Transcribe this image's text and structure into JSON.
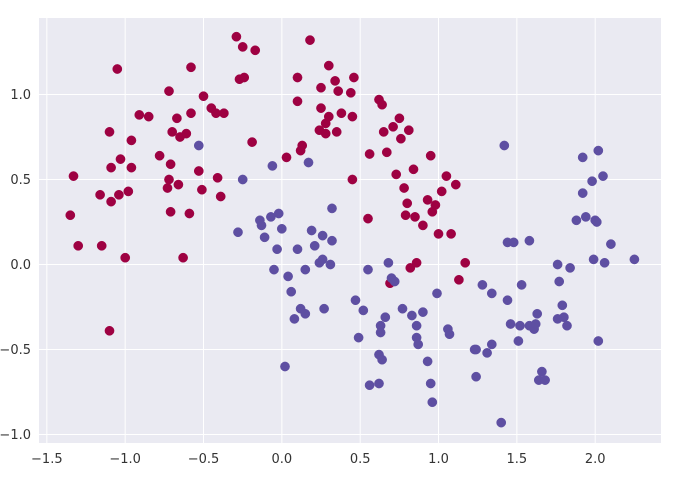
{
  "chart_data": {
    "type": "scatter",
    "title": "",
    "xlabel": "",
    "ylabel": "",
    "xlim": [
      -1.55,
      2.42
    ],
    "ylim": [
      -1.05,
      1.45
    ],
    "grid": true,
    "legend": false,
    "background": "#eaeaf2",
    "grid_color": "#ffffff",
    "xticks": [
      -1.5,
      -1.0,
      -0.5,
      0.0,
      0.5,
      1.0,
      1.5,
      2.0
    ],
    "xtick_labels": [
      "−1.5",
      "−1.0",
      "−0.5",
      "0.0",
      "0.5",
      "1.0",
      "1.5",
      "2.0"
    ],
    "yticks": [
      -1.0,
      -0.5,
      0.0,
      0.5,
      1.0
    ],
    "ytick_labels": [
      "−1.0",
      "−0.5",
      "0.0",
      "0.5",
      "1.0"
    ],
    "series": [
      {
        "color": "#9e0142",
        "points": [
          [
            -1.35,
            0.29
          ],
          [
            -1.33,
            0.52
          ],
          [
            -1.3,
            0.11
          ],
          [
            -1.16,
            0.41
          ],
          [
            -1.15,
            0.11
          ],
          [
            -1.1,
            -0.39
          ],
          [
            -1.1,
            0.78
          ],
          [
            -1.09,
            0.37
          ],
          [
            -1.09,
            0.57
          ],
          [
            -1.05,
            1.15
          ],
          [
            -1.04,
            0.41
          ],
          [
            -1.03,
            0.62
          ],
          [
            -1.0,
            0.04
          ],
          [
            -0.98,
            0.43
          ],
          [
            -0.96,
            0.57
          ],
          [
            -0.96,
            0.73
          ],
          [
            -0.91,
            0.88
          ],
          [
            -0.85,
            0.87
          ],
          [
            -0.78,
            0.64
          ],
          [
            -0.73,
            0.45
          ],
          [
            -0.72,
            0.5
          ],
          [
            -0.71,
            0.31
          ],
          [
            -0.71,
            0.59
          ],
          [
            -0.72,
            1.02
          ],
          [
            -0.7,
            0.78
          ],
          [
            -0.67,
            0.86
          ],
          [
            -0.66,
            0.47
          ],
          [
            -0.65,
            0.75
          ],
          [
            -0.63,
            0.04
          ],
          [
            -0.61,
            0.77
          ],
          [
            -0.59,
            0.3
          ],
          [
            -0.58,
            0.89
          ],
          [
            -0.58,
            1.16
          ],
          [
            -0.53,
            0.55
          ],
          [
            -0.51,
            0.44
          ],
          [
            -0.5,
            0.99
          ],
          [
            -0.45,
            0.92
          ],
          [
            -0.42,
            0.89
          ],
          [
            -0.41,
            0.51
          ],
          [
            -0.39,
            0.4
          ],
          [
            -0.37,
            0.89
          ],
          [
            -0.29,
            1.34
          ],
          [
            -0.27,
            1.09
          ],
          [
            -0.25,
            1.28
          ],
          [
            -0.24,
            1.1
          ],
          [
            -0.19,
            0.72
          ],
          [
            -0.17,
            1.26
          ],
          [
            0.03,
            0.63
          ],
          [
            0.1,
            1.1
          ],
          [
            0.1,
            0.96
          ],
          [
            0.12,
            0.67
          ],
          [
            0.13,
            0.7
          ],
          [
            0.18,
            1.32
          ],
          [
            0.24,
            0.79
          ],
          [
            0.25,
            1.04
          ],
          [
            0.25,
            0.92
          ],
          [
            0.28,
            0.83
          ],
          [
            0.28,
            0.77
          ],
          [
            0.3,
            0.87
          ],
          [
            0.3,
            1.17
          ],
          [
            0.34,
            1.08
          ],
          [
            0.35,
            0.78
          ],
          [
            0.36,
            1.02
          ],
          [
            0.38,
            0.89
          ],
          [
            0.44,
            1.01
          ],
          [
            0.45,
            0.87
          ],
          [
            0.46,
            1.1
          ],
          [
            0.45,
            0.5
          ],
          [
            0.56,
            0.65
          ],
          [
            0.55,
            0.27
          ],
          [
            0.62,
            0.97
          ],
          [
            0.64,
            0.94
          ],
          [
            0.65,
            0.78
          ],
          [
            0.67,
            0.66
          ],
          [
            0.69,
            -0.11
          ],
          [
            0.71,
            0.81
          ],
          [
            0.73,
            0.53
          ],
          [
            0.75,
            0.86
          ],
          [
            0.76,
            0.74
          ],
          [
            0.78,
            0.45
          ],
          [
            0.79,
            0.29
          ],
          [
            0.8,
            0.36
          ],
          [
            0.81,
            0.79
          ],
          [
            0.82,
            -0.02
          ],
          [
            0.84,
            0.56
          ],
          [
            0.85,
            0.28
          ],
          [
            0.86,
            0.01
          ],
          [
            0.9,
            0.23
          ],
          [
            0.93,
            0.38
          ],
          [
            0.95,
            0.64
          ],
          [
            0.96,
            0.31
          ],
          [
            0.98,
            0.35
          ],
          [
            1.0,
            0.18
          ],
          [
            1.02,
            0.43
          ],
          [
            1.05,
            0.52
          ],
          [
            1.08,
            0.18
          ],
          [
            1.11,
            0.47
          ],
          [
            1.13,
            -0.09
          ],
          [
            1.17,
            0.01
          ]
        ]
      },
      {
        "color": "#5e4fa2",
        "points": [
          [
            -0.53,
            0.7
          ],
          [
            -0.28,
            0.19
          ],
          [
            -0.25,
            0.5
          ],
          [
            -0.14,
            0.26
          ],
          [
            -0.13,
            0.23
          ],
          [
            -0.11,
            0.16
          ],
          [
            -0.07,
            0.28
          ],
          [
            -0.06,
            0.58
          ],
          [
            -0.05,
            -0.03
          ],
          [
            -0.03,
            0.09
          ],
          [
            -0.02,
            0.3
          ],
          [
            0.0,
            0.21
          ],
          [
            0.02,
            -0.6
          ],
          [
            0.04,
            -0.07
          ],
          [
            0.06,
            -0.16
          ],
          [
            0.08,
            -0.32
          ],
          [
            0.1,
            0.09
          ],
          [
            0.12,
            -0.26
          ],
          [
            0.15,
            -0.29
          ],
          [
            0.15,
            -0.03
          ],
          [
            0.17,
            0.6
          ],
          [
            0.19,
            0.2
          ],
          [
            0.21,
            0.11
          ],
          [
            0.24,
            0.01
          ],
          [
            0.26,
            0.03
          ],
          [
            0.26,
            0.17
          ],
          [
            0.27,
            -0.26
          ],
          [
            0.31,
            0.0
          ],
          [
            0.32,
            0.14
          ],
          [
            0.32,
            0.33
          ],
          [
            0.47,
            -0.21
          ],
          [
            0.49,
            -0.43
          ],
          [
            0.52,
            -0.27
          ],
          [
            0.55,
            -0.03
          ],
          [
            0.56,
            -0.71
          ],
          [
            0.62,
            -0.7
          ],
          [
            0.62,
            -0.53
          ],
          [
            0.63,
            -0.36
          ],
          [
            0.63,
            -0.4
          ],
          [
            0.64,
            -0.56
          ],
          [
            0.66,
            -0.31
          ],
          [
            0.68,
            0.01
          ],
          [
            0.7,
            -0.08
          ],
          [
            0.72,
            -0.1
          ],
          [
            0.77,
            -0.26
          ],
          [
            0.83,
            -0.3
          ],
          [
            0.86,
            -0.43
          ],
          [
            0.86,
            -0.36
          ],
          [
            0.87,
            -0.47
          ],
          [
            0.9,
            -0.28
          ],
          [
            0.93,
            -0.57
          ],
          [
            0.95,
            -0.7
          ],
          [
            0.96,
            -0.81
          ],
          [
            0.99,
            -0.17
          ],
          [
            1.06,
            -0.38
          ],
          [
            1.07,
            -0.41
          ],
          [
            1.23,
            -0.5
          ],
          [
            1.24,
            -0.5
          ],
          [
            1.24,
            -0.66
          ],
          [
            1.28,
            -0.12
          ],
          [
            1.31,
            -0.52
          ],
          [
            1.34,
            -0.47
          ],
          [
            1.34,
            -0.17
          ],
          [
            1.4,
            -0.93
          ],
          [
            1.42,
            0.7
          ],
          [
            1.44,
            0.13
          ],
          [
            1.44,
            -0.21
          ],
          [
            1.46,
            -0.35
          ],
          [
            1.48,
            0.13
          ],
          [
            1.51,
            -0.45
          ],
          [
            1.52,
            -0.36
          ],
          [
            1.53,
            -0.12
          ],
          [
            1.58,
            -0.36
          ],
          [
            1.58,
            0.14
          ],
          [
            1.61,
            -0.38
          ],
          [
            1.62,
            -0.35
          ],
          [
            1.63,
            -0.29
          ],
          [
            1.64,
            -0.68
          ],
          [
            1.66,
            -0.63
          ],
          [
            1.68,
            -0.68
          ],
          [
            1.76,
            0.0
          ],
          [
            1.79,
            -0.24
          ],
          [
            1.8,
            -0.31
          ],
          [
            1.82,
            -0.36
          ],
          [
            1.84,
            -0.02
          ],
          [
            1.88,
            0.26
          ],
          [
            1.92,
            0.42
          ],
          [
            1.92,
            0.63
          ],
          [
            1.94,
            0.28
          ],
          [
            1.98,
            0.49
          ],
          [
            1.99,
            0.03
          ],
          [
            2.0,
            0.26
          ],
          [
            2.01,
            0.25
          ],
          [
            2.02,
            0.67
          ],
          [
            2.02,
            -0.45
          ],
          [
            2.05,
            0.52
          ],
          [
            2.06,
            0.01
          ],
          [
            2.1,
            0.12
          ],
          [
            2.25,
            0.03
          ],
          [
            1.77,
            -0.1
          ],
          [
            1.76,
            -0.32
          ]
        ]
      }
    ]
  }
}
